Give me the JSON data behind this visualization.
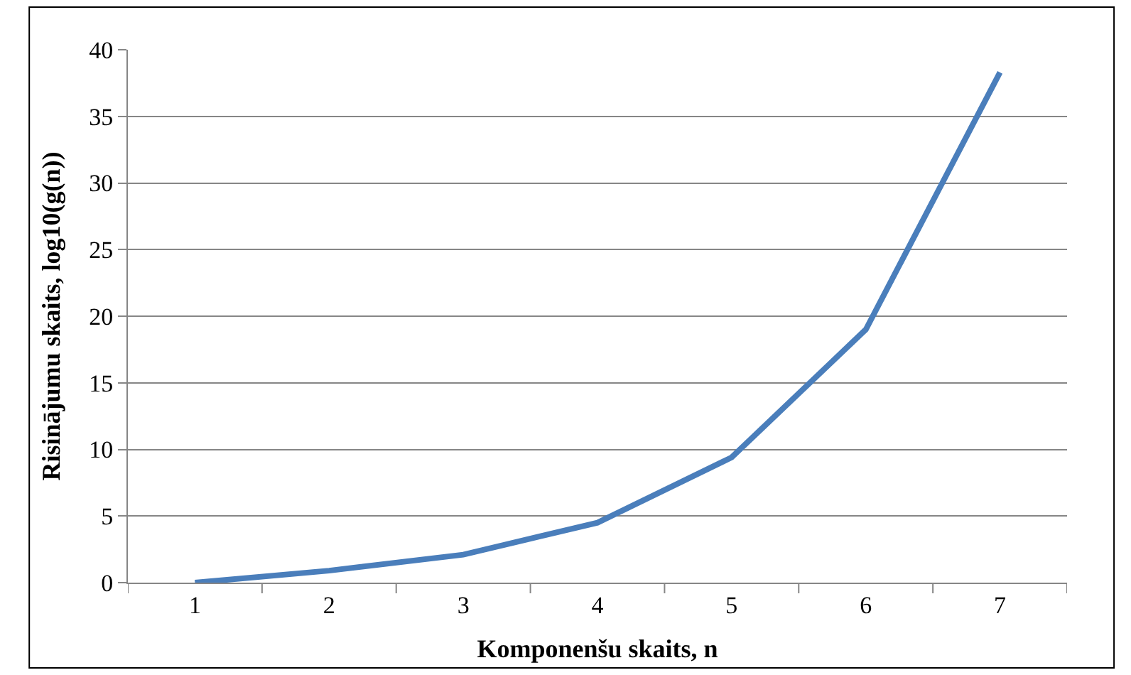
{
  "chart_data": {
    "type": "line",
    "xlabel": "Komponenšu skaits, n",
    "ylabel": "Risinājumu skaits, log10(g(n))",
    "categories": [
      "1",
      "2",
      "3",
      "4",
      "5",
      "6",
      "7"
    ],
    "series": [
      {
        "color": "#4a7ebb",
        "values": [
          0,
          0.9,
          2.1,
          4.5,
          9.4,
          19,
          38.3
        ]
      }
    ],
    "ylim": [
      0,
      40
    ],
    "yticks": [
      0,
      5,
      10,
      15,
      20,
      25,
      30,
      35,
      40
    ],
    "grid": "y",
    "legend": false,
    "marker": "none",
    "line_style": "solid"
  }
}
